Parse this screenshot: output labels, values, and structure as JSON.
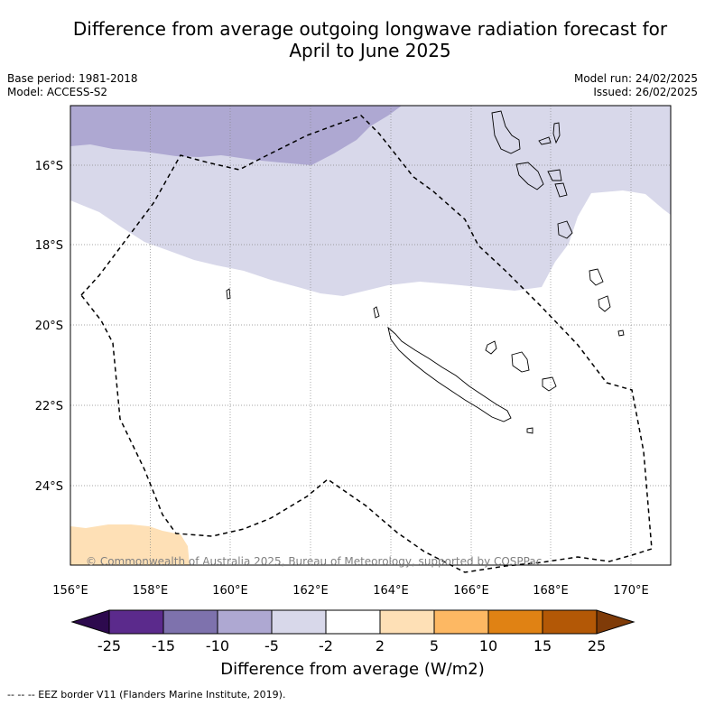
{
  "title_line1": "Difference from average outgoing longwave radiation forecast for",
  "title_line2": "April to June 2025",
  "base_period": "Base period: 1981-2018",
  "model": "Model: ACCESS-S2",
  "model_run": "Model run: 24/02/2025",
  "issued": "Issued: 26/02/2025",
  "copyright": "© Commonwealth of Australia 2025, Bureau of Meteorology, supported by COSPPac",
  "lon_ticks": [
    "156°E",
    "158°E",
    "160°E",
    "162°E",
    "164°E",
    "166°E",
    "168°E",
    "170°E"
  ],
  "lat_ticks": [
    "16°S",
    "18°S",
    "20°S",
    "22°S",
    "24°S"
  ],
  "colorbar": {
    "labels": [
      "-25",
      "-15",
      "-10",
      "-5",
      "-2",
      "2",
      "5",
      "10",
      "15",
      "25"
    ],
    "colors": [
      "#5b2a8c",
      "#7e72ad",
      "#aea8d2",
      "#d8d8ea",
      "#ffffff",
      "#fee0b6",
      "#fdb863",
      "#e08214",
      "#b35806"
    ],
    "under_color": "#2d0a4e",
    "over_color": "#7f3b08",
    "title": "Difference from average (W/m2)"
  },
  "footer": "--  --  -- EEZ border V11 (Flanders Marine Institute, 2019)."
}
